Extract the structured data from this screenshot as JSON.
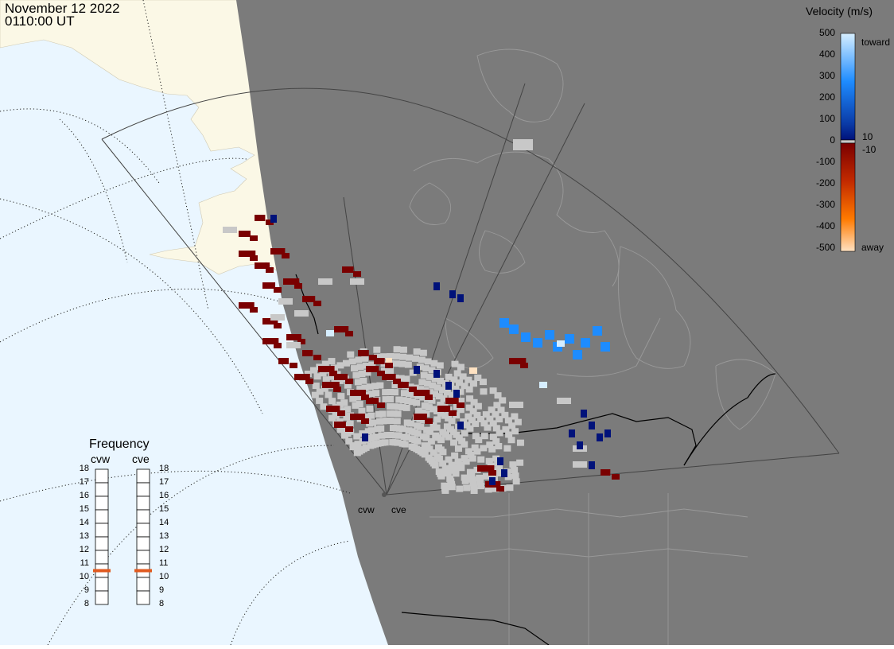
{
  "header": {
    "date": "November 12 2022",
    "time": "0110:00 UT"
  },
  "velocity_scale": {
    "title": "Velocity (m/s)",
    "ticks": [
      "500",
      "400",
      "300",
      "200",
      "100",
      "0",
      "-100",
      "-200",
      "-300",
      "-400",
      "-500"
    ],
    "label_toward": "toward",
    "label_away": "away",
    "label_pos_threshold": "10",
    "label_neg_threshold": "-10",
    "colors": {
      "toward_high": "#d6eeff",
      "toward_mid": "#1e8cff",
      "toward_low": "#00127a",
      "away_low": "#7a0000",
      "away_mid": "#ff6a00",
      "away_high": "#ffe2c2",
      "ground_scatter": "#c8c8c8"
    }
  },
  "frequency_panel": {
    "title": "Frequency",
    "left_label": "cvw",
    "right_label": "cve",
    "levels": [
      "18",
      "17",
      "16",
      "15",
      "14",
      "13",
      "12",
      "11",
      "10",
      "9",
      "8"
    ],
    "cvw_freq_mhz": 10.5,
    "cve_freq_mhz": 10.5,
    "marker_color": "#e05a20"
  },
  "radars": [
    {
      "id": "cvw",
      "label": "cvw"
    },
    {
      "id": "cve",
      "label": "cve"
    }
  ],
  "map_colors": {
    "ocean": "#eaf6ff",
    "land": "#fbf8e6",
    "night": "#7b7b7b",
    "borders": "#000000",
    "coastline_dark": "#9a9a9a"
  }
}
